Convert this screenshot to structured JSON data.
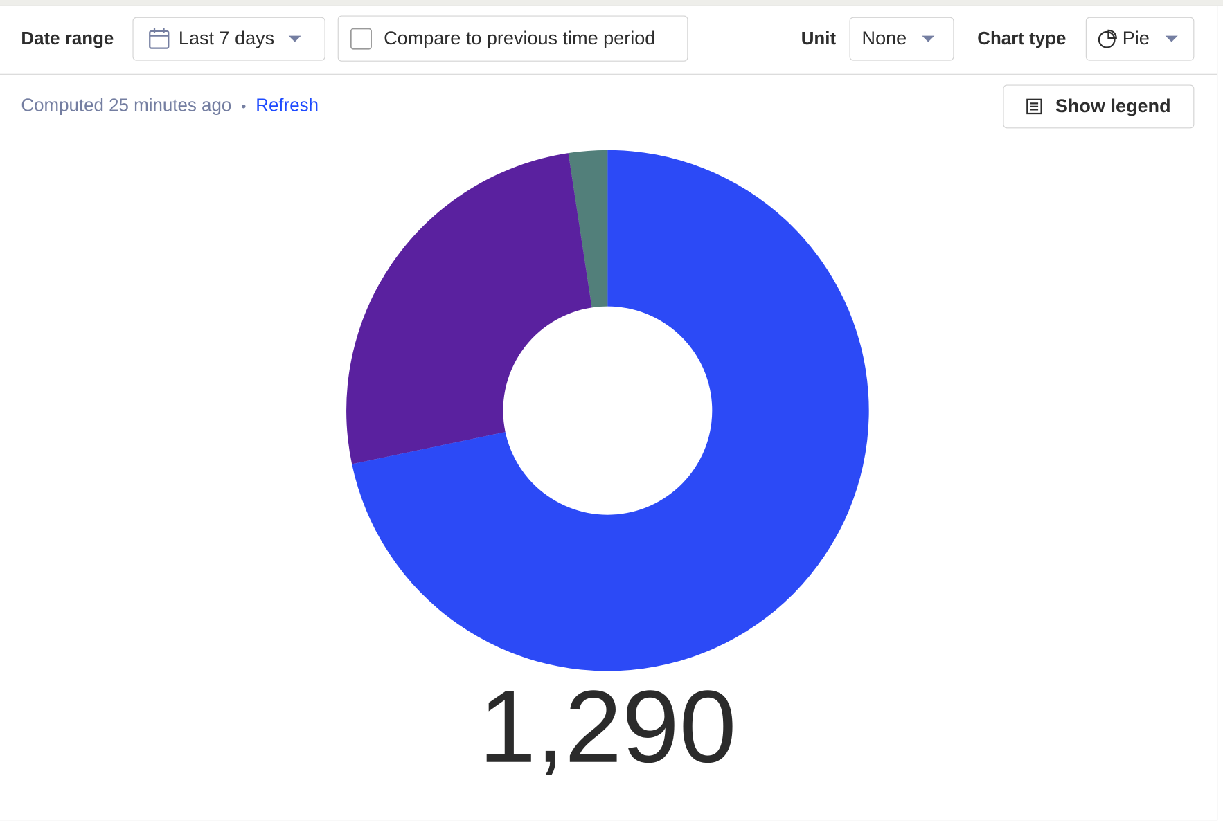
{
  "toolbar": {
    "date_range_label": "Date range",
    "date_range_value": "Last 7 days",
    "compare_label": "Compare to previous time period",
    "unit_label": "Unit",
    "unit_value": "None",
    "chart_type_label": "Chart type",
    "chart_type_value": "Pie"
  },
  "status": {
    "computed": "Computed 25 minutes ago",
    "separator": "•",
    "refresh": "Refresh",
    "show_legend": "Show legend"
  },
  "chart_data": {
    "type": "pie",
    "values": [
      925,
      334,
      31
    ],
    "colors": [
      "#2c4af6",
      "#5a219f",
      "#527f7a"
    ],
    "donut": true,
    "total": {
      "value": 1290,
      "label": "1,290"
    }
  }
}
